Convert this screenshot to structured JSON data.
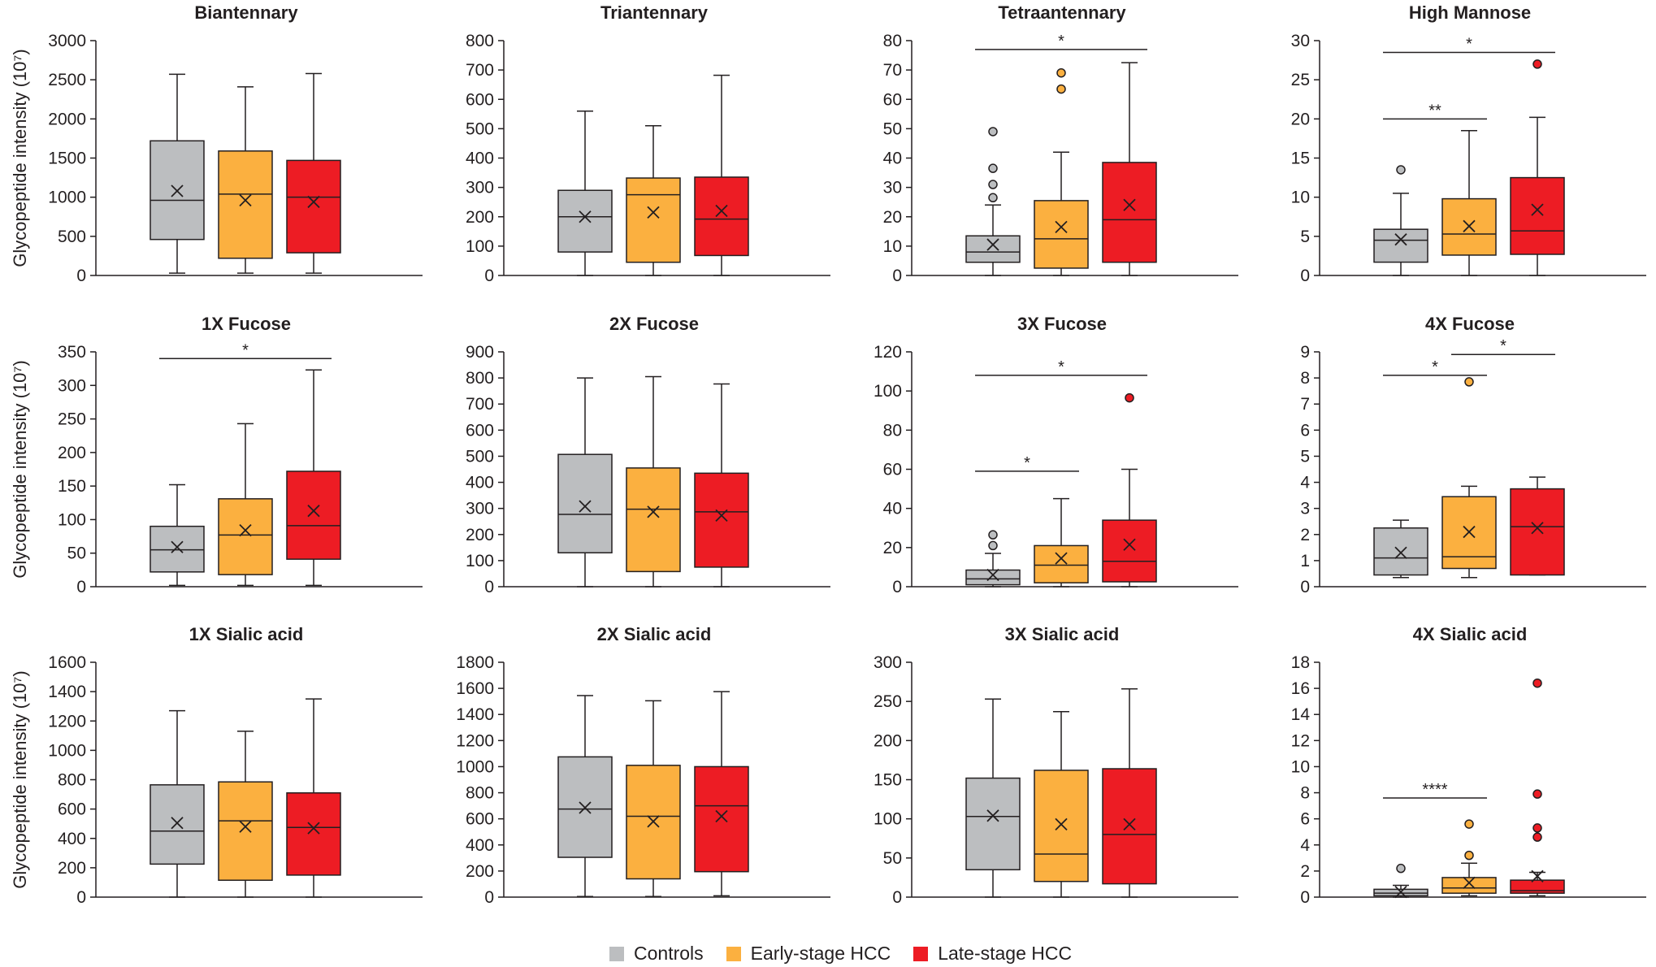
{
  "legend": [
    {
      "name": "Controls",
      "color": "#bcbec0"
    },
    {
      "name": "Early-stage HCC",
      "color": "#fbb040"
    },
    {
      "name": "Late-stage HCC",
      "color": "#ed1c24"
    }
  ],
  "y_axis_label": "Glycopeptide intensity (10⁷)",
  "chart_data": [
    {
      "type": "box",
      "title": "Biantennary",
      "ylim": [
        0,
        3000
      ],
      "ticks": [
        0,
        500,
        1000,
        1500,
        2000,
        2500,
        3000
      ],
      "groups": [
        {
          "name": "Controls",
          "min": 30,
          "q1": 460,
          "median": 960,
          "q3": 1720,
          "max": 2570,
          "mean": 1080,
          "outliers": []
        },
        {
          "name": "Early-stage HCC",
          "min": 30,
          "q1": 220,
          "median": 1040,
          "q3": 1590,
          "max": 2410,
          "mean": 960,
          "outliers": []
        },
        {
          "name": "Late-stage HCC",
          "min": 30,
          "q1": 290,
          "median": 1000,
          "q3": 1470,
          "max": 2580,
          "mean": 940,
          "outliers": []
        }
      ],
      "significance": []
    },
    {
      "type": "box",
      "title": "Triantennary",
      "ylim": [
        0,
        800
      ],
      "ticks": [
        0,
        100,
        200,
        300,
        400,
        500,
        600,
        700,
        800
      ],
      "groups": [
        {
          "name": "Controls",
          "min": 0,
          "q1": 80,
          "median": 200,
          "q3": 290,
          "max": 560,
          "mean": 200,
          "outliers": []
        },
        {
          "name": "Early-stage HCC",
          "min": 0,
          "q1": 45,
          "median": 275,
          "q3": 332,
          "max": 510,
          "mean": 215,
          "outliers": []
        },
        {
          "name": "Late-stage HCC",
          "min": 0,
          "q1": 68,
          "median": 192,
          "q3": 335,
          "max": 682,
          "mean": 220,
          "outliers": []
        }
      ],
      "significance": []
    },
    {
      "type": "box",
      "title": "Tetraantennary",
      "ylim": [
        0,
        80
      ],
      "ticks": [
        0,
        10,
        20,
        30,
        40,
        50,
        60,
        70,
        80
      ],
      "groups": [
        {
          "name": "Controls",
          "min": 0,
          "q1": 4.5,
          "median": 8,
          "q3": 13.5,
          "max": 24,
          "mean": 10.5,
          "outliers": [
            26.5,
            31,
            36.5,
            49
          ]
        },
        {
          "name": "Early-stage HCC",
          "min": 0,
          "q1": 2.5,
          "median": 12.5,
          "q3": 25.5,
          "max": 42,
          "mean": 16.5,
          "outliers": [
            63.5,
            69
          ]
        },
        {
          "name": "Late-stage HCC",
          "min": 0,
          "q1": 4.5,
          "median": 19,
          "q3": 38.5,
          "max": 72.5,
          "mean": 24,
          "outliers": []
        }
      ],
      "significance": [
        {
          "from": 0,
          "to": 2,
          "y": 77,
          "label": "*"
        }
      ]
    },
    {
      "type": "box",
      "title": "High Mannose",
      "ylim": [
        0,
        30
      ],
      "ticks": [
        0,
        5,
        10,
        15,
        20,
        25,
        30
      ],
      "groups": [
        {
          "name": "Controls",
          "min": 0,
          "q1": 1.7,
          "median": 4.5,
          "q3": 5.9,
          "max": 10.5,
          "mean": 4.6,
          "outliers": [
            13.5
          ]
        },
        {
          "name": "Early-stage HCC",
          "min": 0,
          "q1": 2.6,
          "median": 5.3,
          "q3": 9.8,
          "max": 18.5,
          "mean": 6.3,
          "outliers": []
        },
        {
          "name": "Late-stage HCC",
          "min": 0,
          "q1": 2.7,
          "median": 5.7,
          "q3": 12.5,
          "max": 20.2,
          "mean": 8.4,
          "outliers": [
            27
          ]
        }
      ],
      "significance": [
        {
          "from": 0,
          "to": 2,
          "y": 28.5,
          "label": "*"
        },
        {
          "from": 0,
          "to": 1,
          "y": 20,
          "label": "**"
        }
      ]
    },
    {
      "type": "box",
      "title": "1X Fucose",
      "ylim": [
        0,
        350
      ],
      "ticks": [
        0,
        50,
        100,
        150,
        200,
        250,
        300,
        350
      ],
      "groups": [
        {
          "name": "Controls",
          "min": 2,
          "q1": 22,
          "median": 55,
          "q3": 90,
          "max": 152,
          "mean": 59,
          "outliers": []
        },
        {
          "name": "Early-stage HCC",
          "min": 2,
          "q1": 18,
          "median": 77,
          "q3": 131,
          "max": 243,
          "mean": 84,
          "outliers": []
        },
        {
          "name": "Late-stage HCC",
          "min": 2,
          "q1": 41,
          "median": 91,
          "q3": 172,
          "max": 323,
          "mean": 113,
          "outliers": []
        }
      ],
      "significance": [
        {
          "from": 0,
          "to": 2,
          "y": 340,
          "label": "*"
        }
      ]
    },
    {
      "type": "box",
      "title": "2X Fucose",
      "ylim": [
        0,
        900
      ],
      "ticks": [
        0,
        100,
        200,
        300,
        400,
        500,
        600,
        700,
        800,
        900
      ],
      "groups": [
        {
          "name": "Controls",
          "min": 0,
          "q1": 130,
          "median": 277,
          "q3": 507,
          "max": 800,
          "mean": 308,
          "outliers": []
        },
        {
          "name": "Early-stage HCC",
          "min": 0,
          "q1": 58,
          "median": 297,
          "q3": 455,
          "max": 805,
          "mean": 287,
          "outliers": []
        },
        {
          "name": "Late-stage HCC",
          "min": 0,
          "q1": 75,
          "median": 287,
          "q3": 435,
          "max": 777,
          "mean": 273,
          "outliers": []
        }
      ],
      "significance": []
    },
    {
      "type": "box",
      "title": "3X Fucose",
      "ylim": [
        0,
        120
      ],
      "ticks": [
        0,
        20,
        40,
        60,
        80,
        100,
        120
      ],
      "groups": [
        {
          "name": "Controls",
          "min": 0,
          "q1": 1,
          "median": 4,
          "q3": 8.5,
          "max": 17,
          "mean": 6,
          "outliers": [
            21,
            26.5
          ]
        },
        {
          "name": "Early-stage HCC",
          "min": 0,
          "q1": 2,
          "median": 11,
          "q3": 21,
          "max": 45,
          "mean": 14.5,
          "outliers": []
        },
        {
          "name": "Late-stage HCC",
          "min": 0,
          "q1": 2.5,
          "median": 13,
          "q3": 34,
          "max": 60,
          "mean": 21.5,
          "outliers": [
            96.5
          ]
        }
      ],
      "significance": [
        {
          "from": 0,
          "to": 2,
          "y": 108,
          "label": "*"
        },
        {
          "from": 0,
          "to": 1,
          "y": 59,
          "label": "*"
        }
      ]
    },
    {
      "type": "box",
      "title": "4X Fucose",
      "ylim": [
        0,
        9
      ],
      "ticks": [
        0,
        1,
        2,
        3,
        4,
        5,
        6,
        7,
        8,
        9
      ],
      "groups": [
        {
          "name": "Controls",
          "min": 0.35,
          "q1": 0.45,
          "median": 1.1,
          "q3": 2.25,
          "max": 2.55,
          "mean": 1.3,
          "outliers": []
        },
        {
          "name": "Early-stage HCC",
          "min": 0.35,
          "q1": 0.7,
          "median": 1.15,
          "q3": 3.45,
          "max": 3.85,
          "mean": 2.1,
          "outliers": [
            7.85
          ]
        },
        {
          "name": "Late-stage HCC",
          "min": 0.45,
          "q1": 0.45,
          "median": 2.3,
          "q3": 3.75,
          "max": 4.2,
          "mean": 2.25,
          "outliers": []
        }
      ],
      "significance": [
        {
          "from": 1,
          "to": 2,
          "y": 8.9,
          "label": "*"
        },
        {
          "from": 0,
          "to": 1,
          "y": 8.1,
          "label": "*"
        }
      ]
    },
    {
      "type": "box",
      "title": "1X Sialic acid",
      "ylim": [
        0,
        1600
      ],
      "ticks": [
        0,
        200,
        400,
        600,
        800,
        1000,
        1200,
        1400,
        1600
      ],
      "groups": [
        {
          "name": "Controls",
          "min": 0,
          "q1": 225,
          "median": 450,
          "q3": 765,
          "max": 1270,
          "mean": 505,
          "outliers": []
        },
        {
          "name": "Early-stage HCC",
          "min": 0,
          "q1": 115,
          "median": 520,
          "q3": 785,
          "max": 1130,
          "mean": 480,
          "outliers": []
        },
        {
          "name": "Late-stage HCC",
          "min": 0,
          "q1": 150,
          "median": 475,
          "q3": 710,
          "max": 1350,
          "mean": 470,
          "outliers": []
        }
      ],
      "significance": []
    },
    {
      "type": "box",
      "title": "2X Sialic acid",
      "ylim": [
        0,
        1800
      ],
      "ticks": [
        0,
        200,
        400,
        600,
        800,
        1000,
        1200,
        1400,
        1600,
        1800
      ],
      "groups": [
        {
          "name": "Controls",
          "min": 5,
          "q1": 305,
          "median": 675,
          "q3": 1075,
          "max": 1545,
          "mean": 685,
          "outliers": []
        },
        {
          "name": "Early-stage HCC",
          "min": 5,
          "q1": 140,
          "median": 620,
          "q3": 1010,
          "max": 1505,
          "mean": 580,
          "outliers": []
        },
        {
          "name": "Late-stage HCC",
          "min": 10,
          "q1": 195,
          "median": 700,
          "q3": 1000,
          "max": 1575,
          "mean": 620,
          "outliers": []
        }
      ],
      "significance": []
    },
    {
      "type": "box",
      "title": "3X Sialic acid",
      "ylim": [
        0,
        300
      ],
      "ticks": [
        0,
        50,
        100,
        150,
        200,
        250,
        300
      ],
      "groups": [
        {
          "name": "Controls",
          "min": 0,
          "q1": 35,
          "median": 103,
          "q3": 152,
          "max": 253,
          "mean": 104,
          "outliers": []
        },
        {
          "name": "Early-stage HCC",
          "min": 0,
          "q1": 20,
          "median": 55,
          "q3": 162,
          "max": 237,
          "mean": 93,
          "outliers": []
        },
        {
          "name": "Late-stage HCC",
          "min": 0,
          "q1": 17,
          "median": 80,
          "q3": 164,
          "max": 266,
          "mean": 93,
          "outliers": []
        }
      ],
      "significance": []
    },
    {
      "type": "box",
      "title": "4X Sialic acid",
      "ylim": [
        0,
        18
      ],
      "ticks": [
        0,
        2,
        4,
        6,
        8,
        10,
        12,
        14,
        16,
        18
      ],
      "groups": [
        {
          "name": "Controls",
          "min": 0,
          "q1": 0.1,
          "median": 0.3,
          "q3": 0.6,
          "max": 0.9,
          "mean": 0.4,
          "outliers": [
            2.2
          ]
        },
        {
          "name": "Early-stage HCC",
          "min": 0.1,
          "q1": 0.3,
          "median": 0.7,
          "q3": 1.5,
          "max": 2.6,
          "mean": 1.1,
          "outliers": [
            3.2,
            5.6
          ]
        },
        {
          "name": "Late-stage HCC",
          "min": 0.1,
          "q1": 0.3,
          "median": 0.5,
          "q3": 1.3,
          "max": 1.9,
          "mean": 1.6,
          "outliers": [
            4.6,
            5.3,
            7.9,
            16.4
          ]
        }
      ],
      "significance": [
        {
          "from": 0,
          "to": 1,
          "y": 7.6,
          "label": "****"
        }
      ]
    }
  ]
}
